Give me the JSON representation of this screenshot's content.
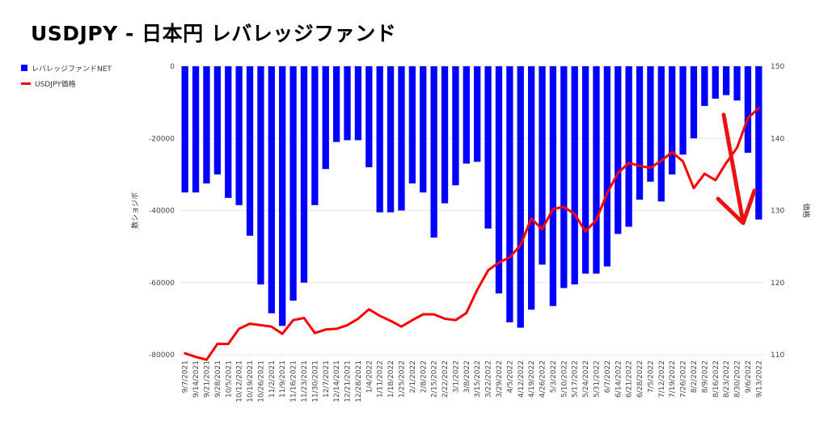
{
  "title": "USDJPY - 日本円 レバレッジファンド",
  "colors": {
    "bars": "#0000ff",
    "line": "#ff0000",
    "arrow": "#ee1111",
    "grid": "#e6e6e6"
  },
  "chart_data": {
    "type": "bar+line",
    "title": "USDJPY - 日本円 レバレッジファンド",
    "xlabel": "",
    "ylabel_left": "数ショジボ",
    "ylabel_right": "価格",
    "ylim_left": [
      -80000,
      0
    ],
    "ylim_right": [
      110,
      150
    ],
    "yticks_left": [
      "0",
      "-20000",
      "-40000",
      "-60000",
      "-80000"
    ],
    "yticks_right": [
      "150",
      "140",
      "130",
      "120",
      "110"
    ],
    "grid": true,
    "legend_position": "left",
    "x_tick_labels": [
      "9/7/2021",
      "9/14/2021",
      "9/21/2021",
      "9/28/2021",
      "10/5/2021",
      "10/12/2021",
      "10/19/2021",
      "10/26/2021",
      "11/2/2021",
      "11/9/2021",
      "11/16/2021",
      "11/23/2021",
      "11/30/2021",
      "12/7/2021",
      "12/14/2021",
      "12/21/2021",
      "12/28/2021",
      "1/4/2022",
      "1/11/2022",
      "1/18/2022",
      "1/25/2022",
      "2/1/2022",
      "2/8/2022",
      "2/15/2022",
      "2/22/2022",
      "3/1/2022",
      "3/8/2022",
      "3/15/2022",
      "3/22/2022",
      "3/29/2022",
      "4/5/2022",
      "4/12/2022",
      "4/19/2022",
      "4/26/2022",
      "5/3/2022",
      "5/10/2022",
      "5/17/2022",
      "5/24/2022",
      "5/31/2022",
      "6/7/2022",
      "6/14/2022",
      "6/21/2022",
      "6/28/2022",
      "7/5/2022",
      "7/12/2022",
      "7/19/2022",
      "7/26/2022",
      "8/2/2022",
      "8/9/2022",
      "8/16/2022",
      "8/23/2022",
      "8/30/2022",
      "9/6/2022",
      "9/13/2022"
    ],
    "categories": [
      "9/7/2021",
      "9/14/2021",
      "9/21/2021",
      "9/28/2021",
      "10/5/2021",
      "10/12/2021",
      "10/19/2021",
      "10/26/2021",
      "11/2/2021",
      "11/9/2021",
      "11/16/2021",
      "11/23/2021",
      "11/30/2021",
      "12/7/2021",
      "12/14/2021",
      "12/21/2021",
      "12/28/2021",
      "1/4/2022",
      "1/11/2022",
      "1/18/2022",
      "1/25/2022",
      "2/1/2022",
      "2/8/2022",
      "2/15/2022",
      "2/22/2022",
      "3/1/2022",
      "3/8/2022",
      "3/15/2022",
      "3/22/2022",
      "3/29/2022",
      "4/5/2022",
      "4/12/2022",
      "4/19/2022",
      "4/26/2022",
      "5/3/2022",
      "5/10/2022",
      "5/17/2022",
      "5/24/2022",
      "5/31/2022",
      "6/7/2022",
      "6/14/2022",
      "6/21/2022",
      "6/28/2022",
      "7/5/2022",
      "7/12/2022",
      "7/19/2022",
      "7/26/2022",
      "8/2/2022",
      "8/9/2022",
      "8/16/2022",
      "8/23/2022",
      "8/30/2022",
      "9/6/2022",
      "9/13/2022"
    ],
    "series": [
      {
        "name": "レバレッジファンドNET",
        "type": "bar",
        "axis": "left",
        "values": [
          -35000,
          -35000,
          -32500,
          -30000,
          -36500,
          -38500,
          -47000,
          -60500,
          -68500,
          -72000,
          -65000,
          -60000,
          -38500,
          -28500,
          -21000,
          -20500,
          -20500,
          -28000,
          -40500,
          -40500,
          -40000,
          -32500,
          -35000,
          -47500,
          -38000,
          -33000,
          -27000,
          -26500,
          -45000,
          -63000,
          -71000,
          -72500,
          -67500,
          -55000,
          -66500,
          -61500,
          -60500,
          -57500,
          -57500,
          -55500,
          -46500,
          -44500,
          -37000,
          -32000,
          -37500,
          -30000,
          -24500,
          -20000,
          -11000,
          -9000,
          -8000,
          -9500,
          -24000,
          -42500
        ]
      },
      {
        "name": "USDJPY価格",
        "type": "line",
        "axis": "right",
        "values": [
          110.2,
          109.7,
          109.3,
          111.5,
          111.5,
          113.6,
          114.3,
          114.1,
          113.9,
          112.9,
          114.8,
          115.1,
          113.0,
          113.5,
          113.6,
          114.1,
          115.0,
          116.3,
          115.4,
          114.7,
          113.9,
          114.8,
          115.6,
          115.6,
          115.0,
          114.8,
          115.8,
          119.0,
          121.7,
          122.8,
          123.5,
          125.2,
          128.9,
          127.4,
          130.2,
          130.5,
          129.5,
          127.1,
          128.7,
          132.4,
          135.2,
          136.6,
          136.2,
          135.9,
          136.9,
          138.1,
          136.8,
          133.1,
          135.1,
          134.2,
          136.6,
          138.7,
          142.8,
          144.2
        ]
      }
    ]
  }
}
